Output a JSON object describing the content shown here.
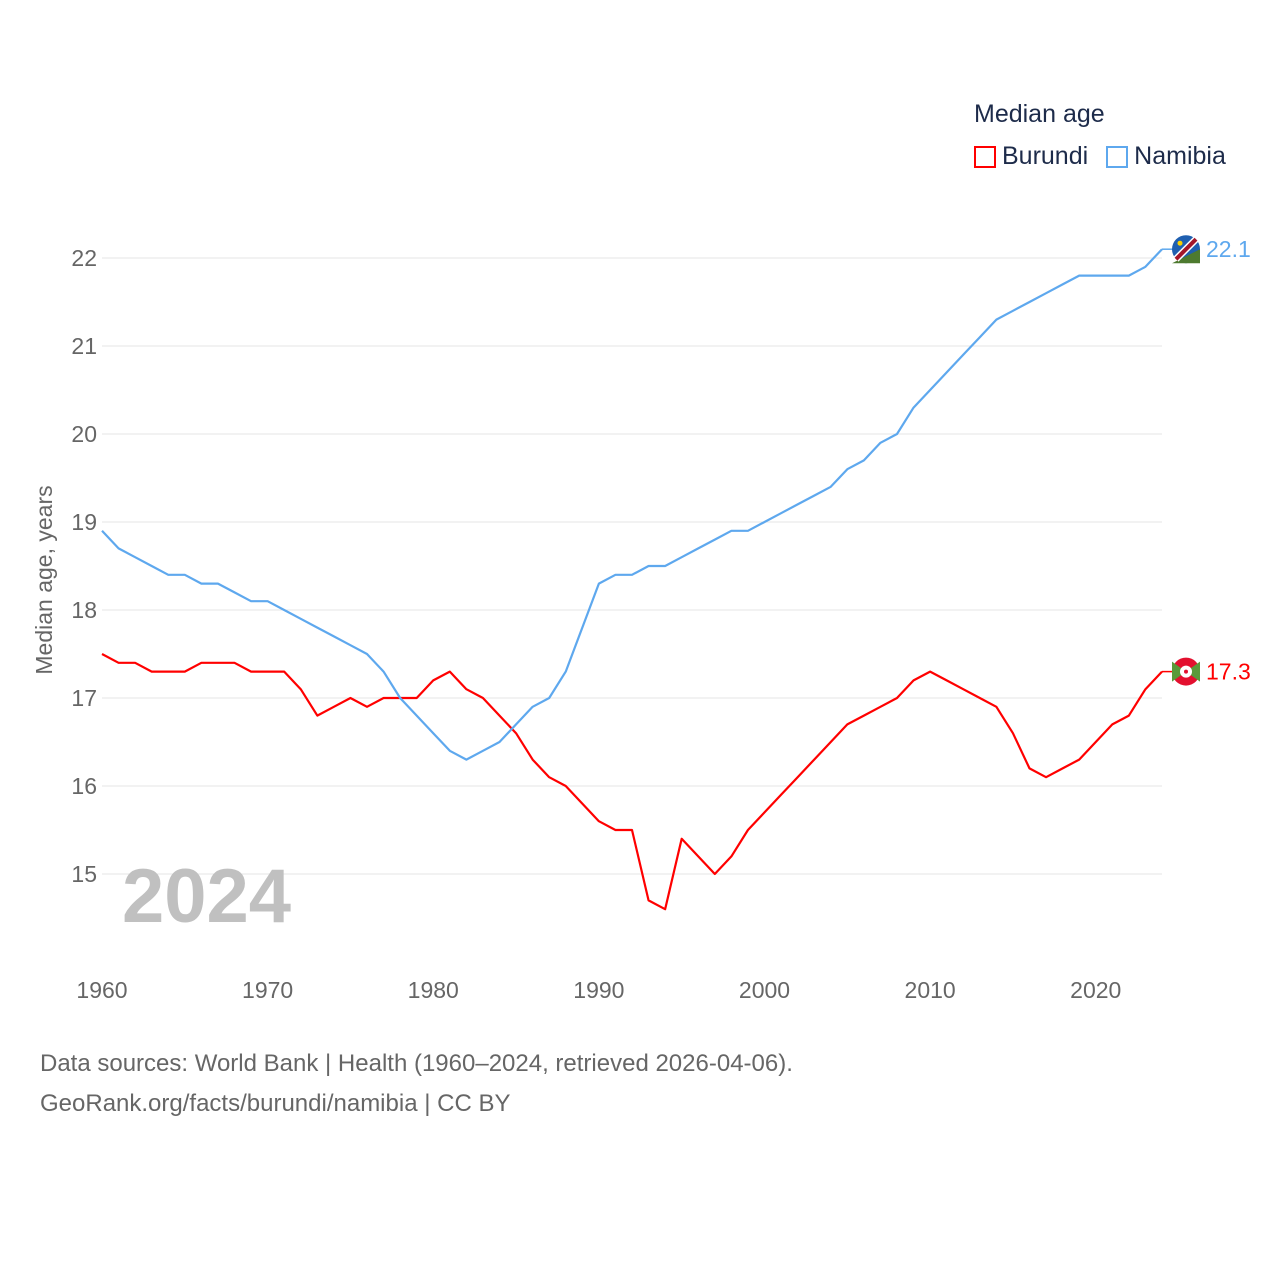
{
  "chart_data": {
    "type": "line",
    "title": "Median age",
    "xlabel": "",
    "ylabel": "Median age, years",
    "xlim": [
      1960,
      2024
    ],
    "ylim": [
      14.3,
      22.3
    ],
    "x_ticks": [
      1960,
      1970,
      1980,
      1990,
      2000,
      2010,
      2020
    ],
    "y_ticks": [
      15,
      16,
      17,
      18,
      19,
      20,
      21,
      22
    ],
    "grid": true,
    "legend_position": "top-right",
    "year_label": "2024",
    "x": [
      1960,
      1961,
      1962,
      1963,
      1964,
      1965,
      1966,
      1967,
      1968,
      1969,
      1970,
      1971,
      1972,
      1973,
      1974,
      1975,
      1976,
      1977,
      1978,
      1979,
      1980,
      1981,
      1982,
      1983,
      1984,
      1985,
      1986,
      1987,
      1988,
      1989,
      1990,
      1991,
      1992,
      1993,
      1994,
      1995,
      1996,
      1997,
      1998,
      1999,
      2000,
      2001,
      2002,
      2003,
      2004,
      2005,
      2006,
      2007,
      2008,
      2009,
      2010,
      2011,
      2012,
      2013,
      2014,
      2015,
      2016,
      2017,
      2018,
      2019,
      2020,
      2021,
      2022,
      2023,
      2024
    ],
    "series": [
      {
        "name": "Burundi",
        "color": "#ff0000",
        "end_label": "17.3",
        "values": [
          17.5,
          17.4,
          17.4,
          17.3,
          17.3,
          17.3,
          17.4,
          17.4,
          17.4,
          17.3,
          17.3,
          17.3,
          17.1,
          16.8,
          16.9,
          17.0,
          16.9,
          17.0,
          17.0,
          17.0,
          17.2,
          17.3,
          17.1,
          17.0,
          16.8,
          16.6,
          16.3,
          16.1,
          16.0,
          15.8,
          15.6,
          15.5,
          15.5,
          14.7,
          14.6,
          15.4,
          15.2,
          15.0,
          15.2,
          15.5,
          15.7,
          15.9,
          16.1,
          16.3,
          16.5,
          16.7,
          16.8,
          16.9,
          17.0,
          17.2,
          17.3,
          17.2,
          17.1,
          17.0,
          16.9,
          16.6,
          16.2,
          16.1,
          16.2,
          16.3,
          16.5,
          16.7,
          16.8,
          17.1,
          17.3
        ]
      },
      {
        "name": "Namibia",
        "color": "#5ea8ee",
        "end_label": "22.1",
        "values": [
          18.9,
          18.7,
          18.6,
          18.5,
          18.4,
          18.4,
          18.3,
          18.3,
          18.2,
          18.1,
          18.1,
          18.0,
          17.9,
          17.8,
          17.7,
          17.6,
          17.5,
          17.3,
          17.0,
          16.8,
          16.6,
          16.4,
          16.3,
          16.4,
          16.5,
          16.7,
          16.9,
          17.0,
          17.3,
          17.8,
          18.3,
          18.4,
          18.4,
          18.5,
          18.5,
          18.6,
          18.7,
          18.8,
          18.9,
          18.9,
          19.0,
          19.1,
          19.2,
          19.3,
          19.4,
          19.6,
          19.7,
          19.9,
          20.0,
          20.3,
          20.5,
          20.7,
          20.9,
          21.1,
          21.3,
          21.4,
          21.5,
          21.6,
          21.7,
          21.8,
          21.8,
          21.8,
          21.8,
          21.9,
          22.1
        ]
      }
    ]
  },
  "footer": {
    "line1": "Data sources: World Bank | Health (1960–2024, retrieved 2026-04-06).",
    "line2": "GeoRank.org/facts/burundi/namibia | CC BY"
  }
}
